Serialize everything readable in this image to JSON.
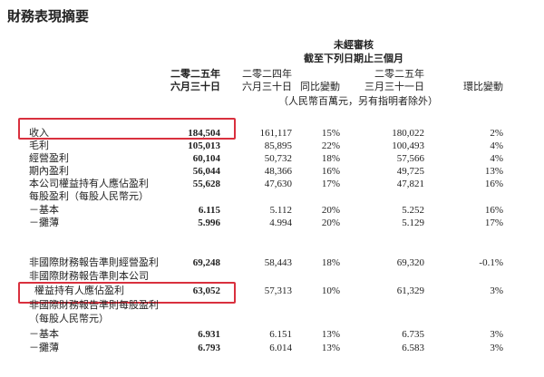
{
  "header": {
    "title": "財務表現摘要",
    "audit": "未經審核",
    "period": "截至下列日期止三個月",
    "unit": "（人民幣百萬元，另有指明者除外）"
  },
  "table": {
    "columns": [
      [
        "二零二五年",
        "六月三十日"
      ],
      [
        "二零二四年",
        "六月三十日"
      ],
      [
        "同比變動"
      ],
      [
        "二零二五年",
        "三月三十一日"
      ],
      [
        "環比變動"
      ]
    ],
    "rows": [
      {
        "label": "收入",
        "values": [
          "184,504",
          "161,117",
          "15%",
          "180,022",
          "2%"
        ]
      },
      {
        "label": "毛利",
        "values": [
          "105,013",
          "85,895",
          "22%",
          "100,493",
          "4%"
        ]
      },
      {
        "label": "經營盈利",
        "values": [
          "60,104",
          "50,732",
          "18%",
          "57,566",
          "4%"
        ]
      },
      {
        "label": "期內盈利",
        "values": [
          "56,044",
          "48,366",
          "16%",
          "49,725",
          "13%"
        ]
      },
      {
        "label": "本公司權益持有人應佔盈利",
        "values": [
          "55,628",
          "47,630",
          "17%",
          "47,821",
          "16%"
        ]
      },
      {
        "label": "每股盈利（每股人民幣元）"
      },
      {
        "label": "－基本",
        "values": [
          "6.115",
          "5.112",
          "20%",
          "5.252",
          "16%"
        ]
      },
      {
        "label": "－攤薄",
        "values": [
          "5.996",
          "4.994",
          "20%",
          "5.129",
          "17%"
        ]
      },
      {
        "label": "非國際財務報告準則經營盈利",
        "values": [
          "69,248",
          "58,443",
          "18%",
          "69,320",
          "-0.1%"
        ]
      },
      {
        "label": "非國際財務報告準則本公司"
      },
      {
        "label": "權益持有人應佔盈利",
        "values": [
          "63,052",
          "57,313",
          "10%",
          "61,329",
          "3%"
        ]
      },
      {
        "label": "非國際財務報告準則每股盈利"
      },
      {
        "label": "（每股人民幣元）"
      },
      {
        "label": "－基本",
        "values": [
          "6.931",
          "6.151",
          "13%",
          "6.735",
          "3%"
        ]
      },
      {
        "label": "－攤薄",
        "values": [
          "6.793",
          "6.014",
          "13%",
          "6.583",
          "3%"
        ]
      }
    ]
  }
}
